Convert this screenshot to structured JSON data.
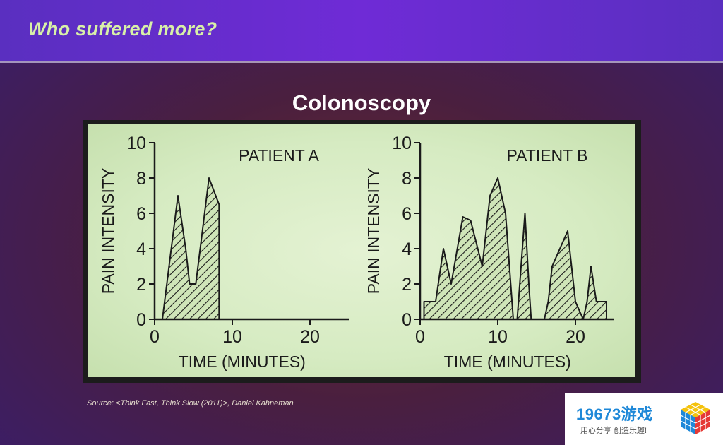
{
  "slide": {
    "header_title": "Who suffered more?",
    "source_text": "Source: <Think Fast, Think Slow (2011)>,   Daniel Kahneman"
  },
  "watermark": {
    "brand": "19673游戏",
    "tagline": "用心分享 创造乐趣!"
  },
  "colors": {
    "header_band": "#6f2bd6",
    "header_text": "#d8f0a8",
    "plot_background": "#d6ebc2",
    "plot_ink": "#1a1a1a"
  },
  "chart_data": {
    "title": "Colonoscopy",
    "charts": [
      {
        "type": "area",
        "name": "PATIENT A",
        "xlabel": "TIME (MINUTES)",
        "ylabel": "PAIN INTENSITY",
        "xlim": [
          0,
          25
        ],
        "ylim": [
          0,
          10
        ],
        "xticks": [
          0,
          10,
          20
        ],
        "yticks": [
          0,
          2,
          4,
          6,
          8,
          10
        ],
        "fill": "hatched",
        "points": [
          [
            1,
            0
          ],
          [
            3,
            7
          ],
          [
            4,
            4
          ],
          [
            4.5,
            2
          ],
          [
            5.3,
            2
          ],
          [
            7,
            8
          ],
          [
            8.3,
            6.5
          ],
          [
            8.3,
            0
          ]
        ]
      },
      {
        "type": "area",
        "name": "PATIENT B",
        "xlabel": "TIME (MINUTES)",
        "ylabel": "PAIN INTENSITY",
        "xlim": [
          0,
          25
        ],
        "ylim": [
          0,
          10
        ],
        "xticks": [
          0,
          10,
          20
        ],
        "yticks": [
          0,
          2,
          4,
          6,
          8,
          10
        ],
        "fill": "hatched",
        "points": [
          [
            0.5,
            0
          ],
          [
            0.5,
            1
          ],
          [
            2,
            1
          ],
          [
            3,
            4
          ],
          [
            4,
            2
          ],
          [
            5.5,
            5.8
          ],
          [
            6.5,
            5.6
          ],
          [
            8,
            3
          ],
          [
            9,
            7
          ],
          [
            10,
            8
          ],
          [
            11,
            6
          ],
          [
            12,
            0
          ],
          [
            12.5,
            0
          ],
          [
            13,
            3
          ],
          [
            13.5,
            6
          ],
          [
            14,
            2
          ],
          [
            14.3,
            0
          ],
          [
            16,
            0
          ],
          [
            16.5,
            1
          ],
          [
            17,
            3
          ],
          [
            19,
            5
          ],
          [
            20,
            1
          ],
          [
            21,
            0
          ],
          [
            21.5,
            1
          ],
          [
            22,
            3
          ],
          [
            22.7,
            1
          ],
          [
            24,
            1
          ],
          [
            24,
            0
          ]
        ]
      }
    ]
  }
}
